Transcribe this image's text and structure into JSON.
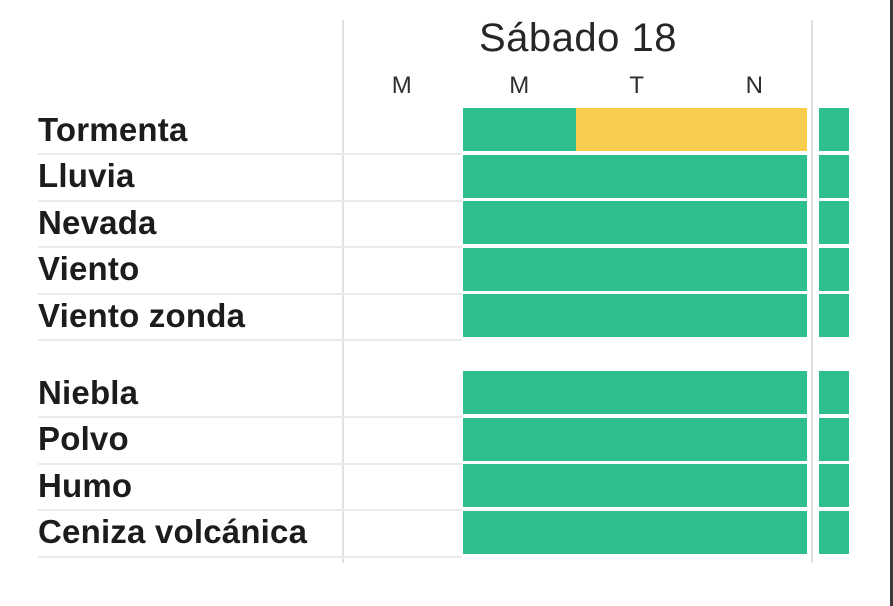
{
  "colors": {
    "green": "#2FBE8D",
    "yellow": "#F8CC4D"
  },
  "chart_data": {
    "type": "table",
    "title": "Sábado 18",
    "column_labels": [
      "M",
      "M",
      "T",
      "N"
    ],
    "legend": "green and yellow segments indicate alert level per time-of-day column; bars span from second column (M) to end of day plus a narrow strip at the start of the next day",
    "groups": [
      {
        "rows": [
          {
            "label": "Tormenta",
            "segments": [
              {
                "color_key": "green",
                "width_pct": 32.8
              },
              {
                "color_key": "yellow",
                "width_pct": 67.2
              }
            ],
            "edge_color_key": "green"
          },
          {
            "label": "Lluvia",
            "segments": [
              {
                "color_key": "green",
                "width_pct": 100
              }
            ],
            "edge_color_key": "green"
          },
          {
            "label": "Nevada",
            "segments": [
              {
                "color_key": "green",
                "width_pct": 100
              }
            ],
            "edge_color_key": "green"
          },
          {
            "label": "Viento",
            "segments": [
              {
                "color_key": "green",
                "width_pct": 100
              }
            ],
            "edge_color_key": "green"
          },
          {
            "label": "Viento zonda",
            "segments": [
              {
                "color_key": "green",
                "width_pct": 100
              }
            ],
            "edge_color_key": "green"
          }
        ]
      },
      {
        "rows": [
          {
            "label": "Niebla",
            "segments": [
              {
                "color_key": "green",
                "width_pct": 100
              }
            ],
            "edge_color_key": "green"
          },
          {
            "label": "Polvo",
            "segments": [
              {
                "color_key": "green",
                "width_pct": 100
              }
            ],
            "edge_color_key": "green"
          },
          {
            "label": "Humo",
            "segments": [
              {
                "color_key": "green",
                "width_pct": 100
              }
            ],
            "edge_color_key": "green"
          },
          {
            "label": "Ceniza volcánica",
            "segments": [
              {
                "color_key": "green",
                "width_pct": 100
              }
            ],
            "edge_color_key": "green"
          }
        ]
      }
    ]
  }
}
